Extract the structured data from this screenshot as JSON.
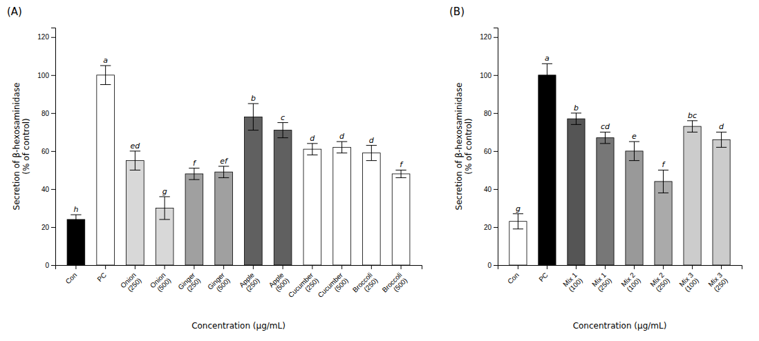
{
  "chart_data": [
    {
      "type": "bar",
      "title": "(A)",
      "categories": [
        "Con",
        "PC",
        "Onion\n(250)",
        "Onion\n(500)",
        "Ginger\n(250)",
        "Ginger\n(500)",
        "Apple\n(250)",
        "Apple\n(500)",
        "Cucumber\n(250)",
        "Cucumber\n(500)",
        "Broccoli\n(250)",
        "Broccoli\n(500)"
      ],
      "values": [
        24,
        100,
        55,
        30,
        48,
        49,
        78,
        71,
        61,
        62,
        59,
        48
      ],
      "errors": [
        2.5,
        5,
        5,
        6,
        3,
        3,
        7,
        4,
        3,
        3,
        4,
        2
      ],
      "annotations": [
        "h",
        "a",
        "ed",
        "g",
        "f",
        "ef",
        "b",
        "c",
        "d",
        "d",
        "d",
        "f"
      ],
      "colors": [
        "#000000",
        "#ffffff",
        "#d8d8d8",
        "#d8d8d8",
        "#a0a0a0",
        "#a0a0a0",
        "#606060",
        "#606060",
        "#ffffff",
        "#ffffff",
        "#ffffff",
        "#ffffff"
      ],
      "ylabel": "Secretion of β-hexosaminidase\n(% of control)",
      "xlabel": "Concentration (μg/mL)",
      "ylim": [
        0,
        125
      ],
      "yticks": [
        0,
        20,
        40,
        60,
        80,
        100,
        120
      ]
    },
    {
      "type": "bar",
      "title": "(B)",
      "categories": [
        "Con",
        "PC",
        "Mix 1\n(100)",
        "Mix 1\n(250)",
        "Mix 2\n(100)",
        "Mix 2\n(250)",
        "Mix 3\n(100)",
        "Mix 3\n(250)"
      ],
      "values": [
        23,
        100,
        77,
        67,
        60,
        44,
        73,
        66
      ],
      "errors": [
        4,
        6,
        3,
        3,
        5,
        6,
        3,
        4
      ],
      "annotations": [
        "g",
        "a",
        "b",
        "cd",
        "e",
        "f",
        "bc",
        "d"
      ],
      "colors": [
        "#ffffff",
        "#000000",
        "#555555",
        "#777777",
        "#999999",
        "#aaaaaa",
        "#cccccc",
        "#cccccc"
      ],
      "ylabel": "Secretion of β-hexosaminidase\n(% of control)",
      "xlabel": "Concentration (μg/mL)",
      "ylim": [
        0,
        125
      ],
      "yticks": [
        0,
        20,
        40,
        60,
        80,
        100,
        120
      ]
    }
  ]
}
